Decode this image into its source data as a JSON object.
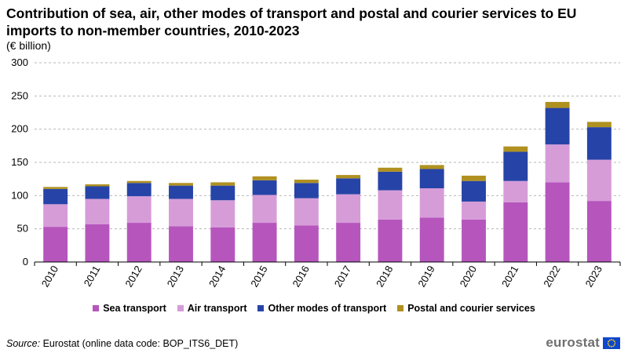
{
  "title": "Contribution of sea, air, other modes of transport and postal and courier services to EU imports to non-member countries, 2010-2023",
  "unit": "(€ billion)",
  "source_label": "Source:",
  "source_text": " Eurostat (online data code: BOP_ITS6_DET)",
  "logo_text": "eurostat",
  "chart_data": {
    "type": "bar",
    "stacked": true,
    "title": "Contribution of sea, air, other modes of transport and postal and courier services to EU imports to non-member countries, 2010-2023",
    "ylabel": "€ billion",
    "ylim": [
      0,
      300
    ],
    "yticks": [
      0,
      50,
      100,
      150,
      200,
      250,
      300
    ],
    "grid": true,
    "legend_position": "bottom",
    "categories": [
      "2010",
      "2011",
      "2012",
      "2013",
      "2014",
      "2015",
      "2016",
      "2017",
      "2018",
      "2019",
      "2020",
      "2021",
      "2022",
      "2023"
    ],
    "series": [
      {
        "name": "Sea transport",
        "color": "#b656bd",
        "values": [
          53,
          57,
          59,
          54,
          52,
          59,
          55,
          59,
          64,
          67,
          64,
          90,
          120,
          92
        ]
      },
      {
        "name": "Air transport",
        "color": "#d69cd8",
        "values": [
          34,
          38,
          40,
          41,
          41,
          42,
          41,
          43,
          44,
          44,
          27,
          32,
          57,
          62
        ]
      },
      {
        "name": "Other modes of transport",
        "color": "#2644a7",
        "values": [
          23,
          19,
          20,
          20,
          22,
          22,
          23,
          24,
          28,
          29,
          31,
          44,
          55,
          49
        ]
      },
      {
        "name": "Postal and courier services",
        "color": "#b09120",
        "values": [
          3,
          3,
          3,
          4,
          5,
          6,
          5,
          5,
          6,
          6,
          8,
          8,
          9,
          8
        ]
      }
    ]
  }
}
